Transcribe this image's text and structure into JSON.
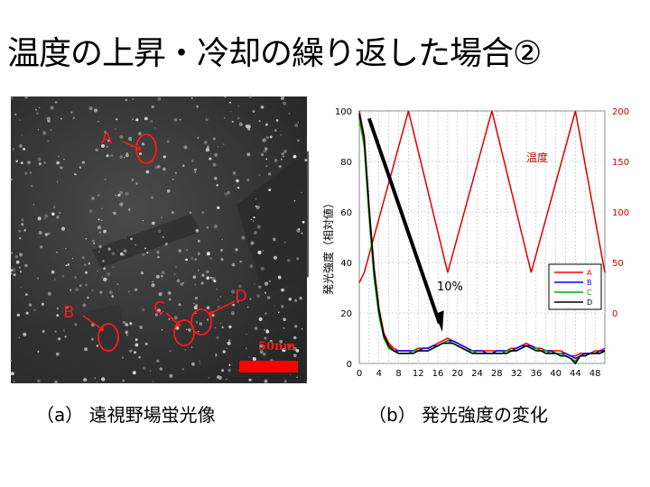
{
  "slide": {
    "title": "温度の上昇・冷却の繰り返した場合②"
  },
  "photo": {
    "scale_label": "50nm",
    "spot_labels": [
      "A",
      "B",
      "C",
      "D"
    ],
    "annotation_color": "#ff1a1a"
  },
  "captions": {
    "left": "（a） 遠視野場蛍光像",
    "right": "（b） 発光強度の変化"
  },
  "chart_data": {
    "type": "line",
    "ylabel": "発光強度（相対値）",
    "y2_label_inline": "温度",
    "annotation": "10%",
    "x_ticks": [
      0,
      4,
      8,
      12,
      16,
      20,
      24,
      28,
      32,
      36,
      40,
      44,
      48
    ],
    "xlim": [
      0,
      50
    ],
    "ylim": [
      0,
      100
    ],
    "y_ticks": [
      0,
      20,
      40,
      60,
      80,
      100
    ],
    "y2lim": [
      -50,
      200
    ],
    "y2_ticks": [
      0,
      50,
      100,
      150,
      200
    ],
    "grid": true,
    "legend_position": "right-middle",
    "x": [
      0,
      1,
      2,
      3,
      4,
      5,
      6,
      7,
      8,
      9,
      10,
      11,
      12,
      13,
      14,
      15,
      16,
      17,
      18,
      19,
      20,
      21,
      22,
      23,
      24,
      25,
      26,
      27,
      28,
      29,
      30,
      31,
      32,
      33,
      34,
      35,
      36,
      37,
      38,
      39,
      40,
      41,
      42,
      43,
      44,
      45,
      46,
      47,
      48,
      49,
      50
    ],
    "series": [
      {
        "name": "A",
        "color": "#ff0000",
        "values": [
          100,
          90,
          62,
          38,
          22,
          12,
          8,
          6,
          5,
          5,
          5,
          5,
          6,
          6,
          6,
          7,
          8,
          9,
          10,
          9,
          8,
          7,
          6,
          5,
          5,
          5,
          5,
          5,
          5,
          5,
          5,
          6,
          6,
          7,
          8,
          7,
          6,
          6,
          5,
          5,
          5,
          5,
          4,
          3,
          3,
          4,
          4,
          4,
          5,
          5,
          6
        ]
      },
      {
        "name": "B",
        "color": "#0000ff",
        "values": [
          98,
          88,
          60,
          36,
          20,
          11,
          7,
          5,
          5,
          5,
          5,
          5,
          5,
          6,
          6,
          7,
          7,
          8,
          9,
          9,
          8,
          7,
          6,
          5,
          5,
          5,
          4,
          4,
          5,
          5,
          5,
          5,
          6,
          7,
          7,
          7,
          6,
          5,
          5,
          5,
          4,
          4,
          4,
          3,
          2,
          3,
          4,
          4,
          4,
          5,
          5
        ]
      },
      {
        "name": "C",
        "color": "#00aa00",
        "values": [
          97,
          86,
          58,
          34,
          19,
          10,
          6,
          5,
          4,
          4,
          4,
          5,
          5,
          5,
          5,
          6,
          7,
          8,
          9,
          8,
          7,
          6,
          5,
          5,
          4,
          4,
          4,
          4,
          4,
          4,
          5,
          5,
          5,
          6,
          7,
          6,
          6,
          5,
          5,
          4,
          4,
          4,
          3,
          2,
          1,
          3,
          3,
          4,
          4,
          4,
          5
        ]
      },
      {
        "name": "D",
        "color": "#000000",
        "values": [
          99,
          89,
          61,
          37,
          21,
          11,
          7,
          5,
          4,
          4,
          4,
          4,
          5,
          5,
          5,
          6,
          7,
          8,
          8,
          8,
          7,
          6,
          5,
          4,
          4,
          4,
          4,
          4,
          4,
          4,
          4,
          5,
          5,
          6,
          7,
          6,
          5,
          5,
          4,
          4,
          4,
          3,
          3,
          2,
          0,
          3,
          3,
          4,
          4,
          4,
          5
        ]
      }
    ],
    "temperature": {
      "color": "#dd0000",
      "x": [
        0,
        1,
        10,
        18,
        27,
        35,
        44,
        50
      ],
      "values": [
        30,
        40,
        200,
        40,
        200,
        40,
        200,
        40
      ]
    }
  }
}
